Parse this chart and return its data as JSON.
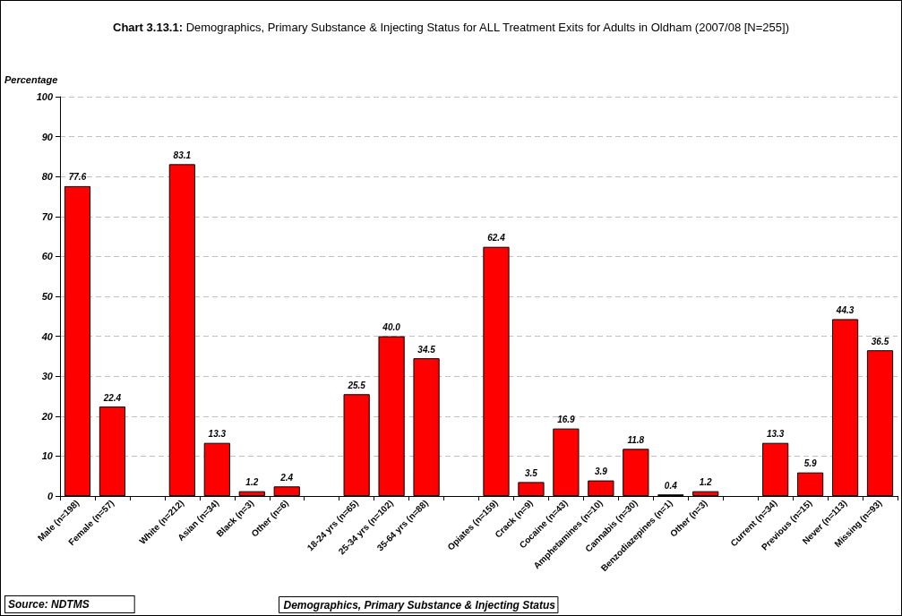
{
  "chart_data": {
    "type": "bar",
    "title": "Chart 3.13.1: Demographics, Primary Substance & Injecting Status for ALL Treatment Exits for Adults in Oldham (2007/08 [N=255])",
    "ylabel": "Percentage",
    "xlabel": "Demographics, Primary Substance & Injecting Status",
    "annotations": [
      "Source: NDTMS"
    ],
    "categories": [
      "Male (n=198)",
      "Female (n=57)",
      null,
      "White (n=212)",
      "Asian (n=34)",
      "Black (n=3)",
      "Other (n=6)",
      null,
      "18-24 yrs (n=65)",
      "25-34 yrs (n=102)",
      "35-64 yrs (n=88)",
      null,
      "Opiates (n=159)",
      "Crack (n=9)",
      "Cocaine (n=43)",
      "Amphetamines (n=10)",
      "Cannabis (n=30)",
      "Benzodiazepines (n=1)",
      "Other (n=3)",
      null,
      "Current (n=34)",
      "Previous (n=15)",
      "Never (n=113)",
      "Missing (n=93)"
    ],
    "values": [
      77.6,
      22.4,
      null,
      83.1,
      13.3,
      1.2,
      2.4,
      null,
      25.5,
      40.0,
      34.5,
      null,
      62.4,
      3.5,
      16.9,
      3.9,
      11.8,
      0.4,
      1.2,
      null,
      13.3,
      5.9,
      44.3,
      36.5
    ],
    "value_labels": [
      "77.6",
      "22.4",
      null,
      "83.1",
      "13.3",
      "1.2",
      "2.4",
      null,
      "25.5",
      "40.0",
      "34.5",
      null,
      "62.4",
      "3.5",
      "16.9",
      "3.9",
      "11.8",
      "0.4",
      "1.2",
      null,
      "13.3",
      "5.9",
      "44.3",
      "36.5"
    ],
    "color": "#ff0000",
    "ylim": [
      0,
      100
    ],
    "yticks": [
      0,
      10,
      20,
      30,
      40,
      50,
      60,
      70,
      80,
      90,
      100
    ],
    "grid": "y"
  }
}
